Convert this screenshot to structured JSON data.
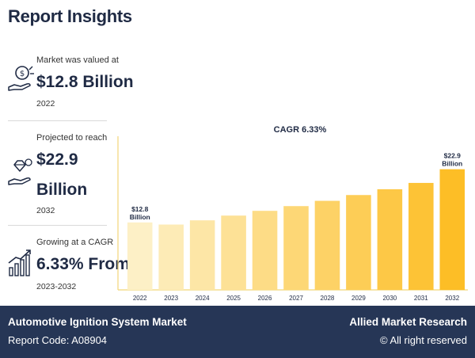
{
  "header": {
    "title": "Report Insights"
  },
  "stats": [
    {
      "label": "Market was valued at",
      "value": "$12.8 Billion",
      "value_line2": "",
      "sub": "2022",
      "icon": "money-hand-icon"
    },
    {
      "label": "Projected to reach",
      "value": "$22.9",
      "value_line2": "Billion",
      "sub": "2032",
      "icon": "diamond-growth-hand-icon"
    },
    {
      "label": "Growing at a CAGR",
      "value": "6.33% From",
      "value_line2": "",
      "sub": "2023-2032",
      "icon": "growth-bars-icon"
    }
  ],
  "chart_data": {
    "type": "bar",
    "title": "CAGR 6.33%",
    "categories": [
      "2022",
      "2023",
      "2024",
      "2025",
      "2026",
      "2027",
      "2028",
      "2029",
      "2030",
      "2031",
      "2032"
    ],
    "values": [
      12.8,
      12.4,
      13.2,
      14.1,
      15.0,
      15.9,
      16.9,
      18.0,
      19.1,
      20.3,
      22.9
    ],
    "data_labels": [
      {
        "index": 0,
        "line1": "$12.8",
        "line2": "Billion"
      },
      {
        "index": 10,
        "line1": "$22.9",
        "line2": "Billion"
      }
    ],
    "ylim": [
      0,
      26
    ],
    "xlabel": "",
    "ylabel": "",
    "colors": [
      "#fdf0c6",
      "#fdebb6",
      "#fde6a6",
      "#fde196",
      "#fddc86",
      "#fdd776",
      "#fdd266",
      "#fdcd56",
      "#fdc846",
      "#fdc336",
      "#fdbe26"
    ],
    "axis_color": "#f2d678",
    "title_color": "#1f2a44"
  },
  "footer": {
    "report_title": "Automotive Ignition System Market",
    "report_code": "Report Code: A08904",
    "brand": "Allied Market Research",
    "rights": "© All right reserved"
  }
}
